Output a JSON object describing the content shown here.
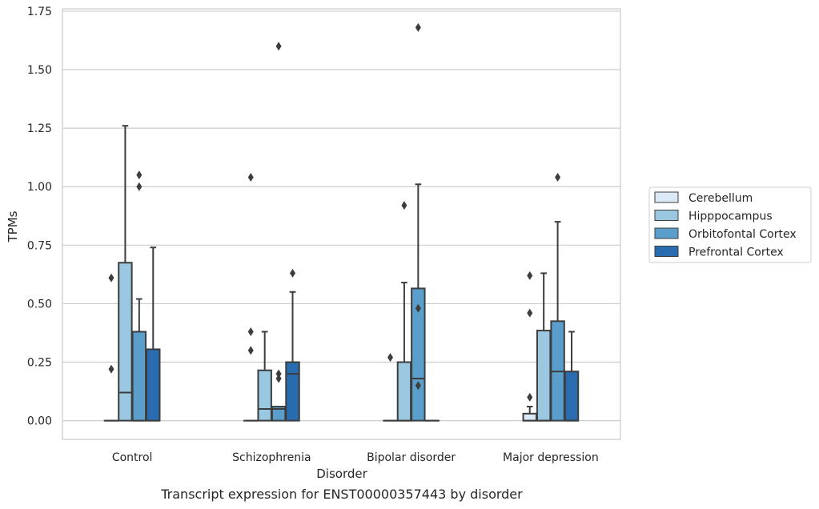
{
  "chart_data": {
    "type": "box",
    "caption": "Transcript expression for ENST00000357443 by disorder",
    "xlabel": "Disorder",
    "ylabel": "TPMs",
    "ylim": [
      -0.08,
      1.76
    ],
    "yticks": [
      0.0,
      0.25,
      0.5,
      0.75,
      1.0,
      1.25,
      1.5,
      1.75
    ],
    "ytick_labels": [
      "0.00",
      "0.25",
      "0.50",
      "0.75",
      "1.00",
      "1.25",
      "1.50",
      "1.75"
    ],
    "grid": "horizontal",
    "legend_position": "right",
    "categories": [
      "Control",
      "Schizophrenia",
      "Bipolar disorder",
      "Major depression"
    ],
    "series": [
      {
        "name": "Cerebellum",
        "color": "#dbe9f6",
        "boxes": [
          {
            "q1": 0.0,
            "median": 0.0,
            "q3": 0.0,
            "whislo": 0.0,
            "whishi": 0.0,
            "fliers": [
              0.61,
              0.22
            ]
          },
          {
            "q1": 0.0,
            "median": 0.0,
            "q3": 0.0,
            "whislo": 0.0,
            "whishi": 0.0,
            "fliers": [
              1.04,
              0.38,
              0.3
            ]
          },
          {
            "q1": 0.0,
            "median": 0.0,
            "q3": 0.0,
            "whislo": 0.0,
            "whishi": 0.0,
            "fliers": [
              0.27
            ]
          },
          {
            "q1": 0.0,
            "median": 0.0,
            "q3": 0.03,
            "whislo": 0.0,
            "whishi": 0.06,
            "fliers": [
              0.62,
              0.46,
              0.1
            ]
          }
        ]
      },
      {
        "name": "Hipppocampus",
        "color": "#9ac8e0",
        "boxes": [
          {
            "q1": 0.0,
            "median": 0.12,
            "q3": 0.675,
            "whislo": 0.0,
            "whishi": 1.26,
            "fliers": []
          },
          {
            "q1": 0.0,
            "median": 0.05,
            "q3": 0.215,
            "whislo": 0.0,
            "whishi": 0.38,
            "fliers": []
          },
          {
            "q1": 0.0,
            "median": 0.0,
            "q3": 0.25,
            "whislo": 0.0,
            "whishi": 0.59,
            "fliers": [
              0.92
            ]
          },
          {
            "q1": 0.0,
            "median": 0.0,
            "q3": 0.385,
            "whislo": 0.0,
            "whishi": 0.63,
            "fliers": []
          }
        ]
      },
      {
        "name": "Orbitofontal Cortex",
        "color": "#5a9fcc",
        "boxes": [
          {
            "q1": 0.0,
            "median": 0.0,
            "q3": 0.38,
            "whislo": 0.0,
            "whishi": 0.52,
            "fliers": [
              1.05,
              1.0
            ]
          },
          {
            "q1": 0.0,
            "median": 0.05,
            "q3": 0.06,
            "whislo": 0.0,
            "whishi": 0.06,
            "fliers": [
              1.6,
              0.2,
              0.18
            ]
          },
          {
            "q1": 0.0,
            "median": 0.18,
            "q3": 0.565,
            "whislo": 0.0,
            "whishi": 1.01,
            "fliers": [
              1.68,
              0.48,
              0.15
            ]
          },
          {
            "q1": 0.0,
            "median": 0.21,
            "q3": 0.425,
            "whislo": 0.0,
            "whishi": 0.85,
            "fliers": [
              1.04
            ]
          }
        ]
      },
      {
        "name": "Prefrontal Cortex",
        "color": "#2a6cb0",
        "boxes": [
          {
            "q1": 0.0,
            "median": 0.0,
            "q3": 0.305,
            "whislo": 0.0,
            "whishi": 0.74,
            "fliers": []
          },
          {
            "q1": 0.0,
            "median": 0.2,
            "q3": 0.25,
            "whislo": 0.0,
            "whishi": 0.55,
            "fliers": [
              0.63
            ]
          },
          {
            "q1": 0.0,
            "median": 0.0,
            "q3": 0.0,
            "whislo": 0.0,
            "whishi": 0.0,
            "fliers": []
          },
          {
            "q1": 0.0,
            "median": 0.0,
            "q3": 0.21,
            "whislo": 0.0,
            "whishi": 0.38,
            "fliers": []
          }
        ]
      }
    ]
  }
}
